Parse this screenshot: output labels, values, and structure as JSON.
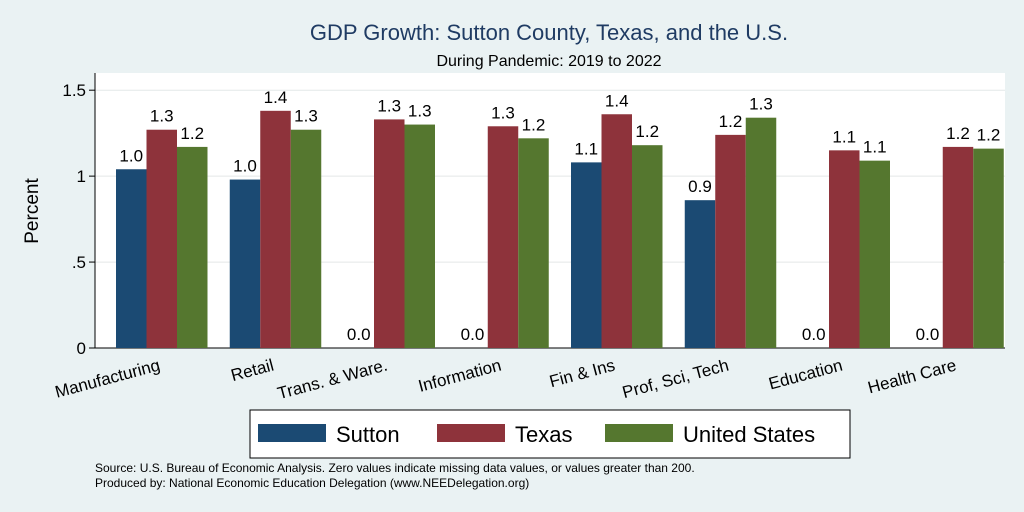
{
  "chart_data": {
    "type": "bar",
    "title": "GDP Growth: Sutton County, Texas, and the U.S.",
    "subtitle": "During Pandemic: 2019 to 2022",
    "ylabel": "Percent",
    "ylim": [
      0,
      1.6
    ],
    "yticks": [
      0,
      0.5,
      1,
      1.5
    ],
    "ytick_labels": [
      "0",
      ".5",
      "1",
      "1.5"
    ],
    "grid": true,
    "legend_position": "bottom",
    "categories": [
      "Manufacturing",
      "Retail",
      "Trans. & Ware.",
      "Information",
      "Fin & Ins",
      "Prof, Sci, Tech",
      "Education",
      "Health Care"
    ],
    "series": [
      {
        "name": "Sutton",
        "color": "#1b4a73",
        "values": [
          1.04,
          0.98,
          0.0,
          0.0,
          1.08,
          0.86,
          0.0,
          0.0
        ],
        "labels": [
          "1.0",
          "1.0",
          "0.0",
          "0.0",
          "1.1",
          "0.9",
          "0.0",
          "0.0"
        ]
      },
      {
        "name": "Texas",
        "color": "#8e333b",
        "values": [
          1.27,
          1.38,
          1.33,
          1.29,
          1.36,
          1.24,
          1.15,
          1.17
        ],
        "labels": [
          "1.3",
          "1.4",
          "1.3",
          "1.3",
          "1.4",
          "1.2",
          "1.1",
          "1.2"
        ]
      },
      {
        "name": "United States",
        "color": "#55772f",
        "values": [
          1.17,
          1.27,
          1.3,
          1.22,
          1.18,
          1.34,
          1.09,
          1.16
        ],
        "labels": [
          "1.2",
          "1.3",
          "1.3",
          "1.2",
          "1.2",
          "1.3",
          "1.1",
          "1.2"
        ]
      }
    ],
    "notes": [
      "Source: U.S. Bureau of Economic Analysis. Zero values indicate missing data values, or values greater than 200.",
      "Produced by: National Economic Education Delegation (www.NEEDelegation.org)"
    ]
  }
}
